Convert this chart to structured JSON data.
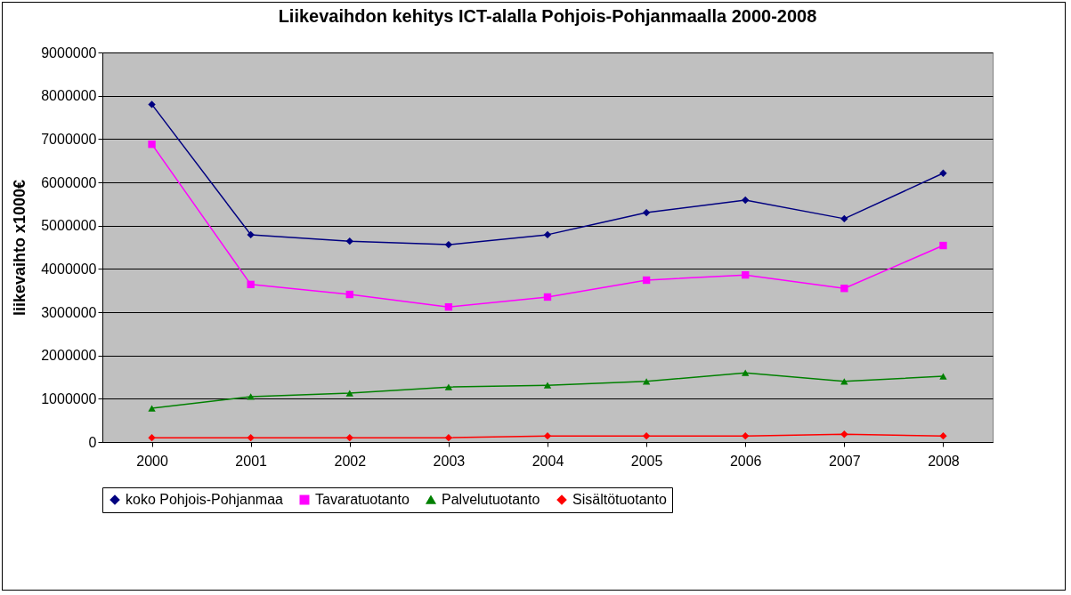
{
  "chart_data": {
    "type": "line",
    "title": "Liikevaihdon kehitys ICT-alalla Pohjois-Pohjanmaalla 2000-2008",
    "ylabel": "liikevaihto x1000€",
    "categories": [
      "2000",
      "2001",
      "2002",
      "2003",
      "2004",
      "2005",
      "2006",
      "2007",
      "2008"
    ],
    "series": [
      {
        "name": "koko Pohjois-Pohjanmaa",
        "color": "#000080",
        "marker": "diamond",
        "values": [
          7800000,
          4790000,
          4640000,
          4560000,
          4790000,
          5300000,
          5590000,
          5160000,
          6210000
        ]
      },
      {
        "name": "Tavaratuotanto",
        "color": "#ff00ff",
        "marker": "square",
        "values": [
          6880000,
          3640000,
          3410000,
          3120000,
          3350000,
          3740000,
          3860000,
          3550000,
          4540000
        ]
      },
      {
        "name": "Palvelutuotanto",
        "color": "#008000",
        "marker": "triangle",
        "values": [
          780000,
          1050000,
          1130000,
          1270000,
          1310000,
          1400000,
          1600000,
          1400000,
          1520000
        ]
      },
      {
        "name": "Sisältötuotanto",
        "color": "#ff0000",
        "marker": "diamond",
        "values": [
          100000,
          100000,
          100000,
          100000,
          140000,
          140000,
          140000,
          180000,
          140000
        ]
      }
    ],
    "ylim": [
      0,
      9000000
    ],
    "yticks": [
      0,
      1000000,
      2000000,
      3000000,
      4000000,
      5000000,
      6000000,
      7000000,
      8000000,
      9000000
    ],
    "grid": "y",
    "legend": "bottom",
    "line_style": "solid"
  }
}
